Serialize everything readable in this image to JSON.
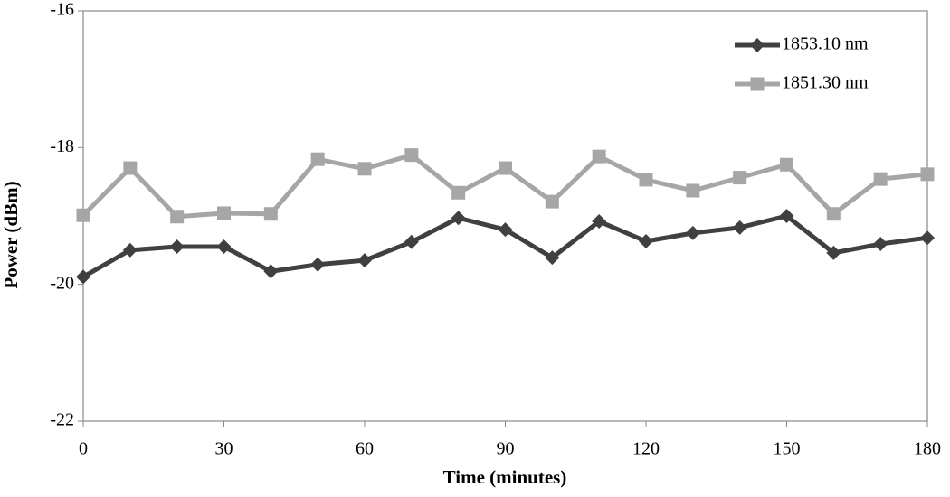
{
  "chart_data": {
    "type": "line",
    "x_label": "Time (minutes)",
    "y_label": "Power (dBm)",
    "x": [
      0,
      10,
      20,
      30,
      40,
      50,
      60,
      70,
      80,
      90,
      100,
      110,
      120,
      130,
      140,
      150,
      160,
      170,
      180
    ],
    "series": [
      {
        "name": "1853.10 nm",
        "color": "#404040",
        "marker": "diamond",
        "values": [
          -19.89,
          -19.5,
          -19.45,
          -19.45,
          -19.81,
          -19.71,
          -19.65,
          -19.38,
          -19.03,
          -19.2,
          -19.61,
          -19.08,
          -19.37,
          -19.25,
          -19.17,
          -19.0,
          -19.54,
          -19.41,
          -19.32
        ]
      },
      {
        "name": "1851.30 nm",
        "color": "#a6a6a6",
        "marker": "square",
        "values": [
          -18.99,
          -18.3,
          -19.01,
          -18.96,
          -18.97,
          -18.17,
          -18.31,
          -18.11,
          -18.66,
          -18.3,
          -18.79,
          -18.13,
          -18.47,
          -18.63,
          -18.44,
          -18.25,
          -18.97,
          -18.46,
          -18.39
        ]
      }
    ],
    "xlim": [
      0,
      180
    ],
    "xticks": [
      0,
      30,
      60,
      90,
      120,
      150,
      180
    ],
    "ylim": [
      -22,
      -16
    ],
    "yticks": [
      -22,
      -20,
      -18,
      -16
    ],
    "grid": false,
    "legend": "top-right"
  }
}
